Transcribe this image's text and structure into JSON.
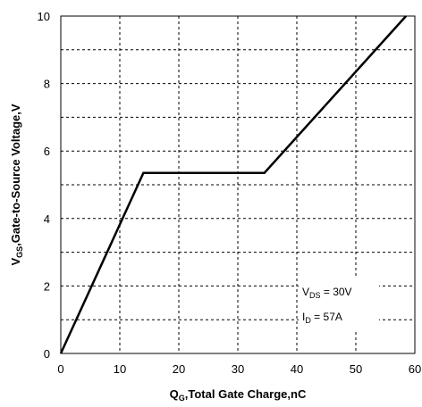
{
  "chart_data": {
    "type": "line",
    "title": "",
    "xlabel": "QG,Total Gate Charge,nC",
    "xlabel_main": "Q",
    "xlabel_sub": "G",
    "xlabel_rest": ",Total Gate Charge,nC",
    "ylabel_main": "V",
    "ylabel_sub": "GS",
    "ylabel_rest": ",Gate-to-Source Voltage,V",
    "xlim": [
      0,
      60
    ],
    "ylim": [
      0,
      10
    ],
    "x_ticks": [
      0,
      10,
      20,
      30,
      40,
      50,
      60
    ],
    "y_ticks": [
      0,
      2,
      4,
      6,
      8,
      10
    ],
    "grid": true,
    "series": [
      {
        "x": [
          0,
          14,
          34.5,
          58.5
        ],
        "y": [
          0,
          5.35,
          5.35,
          10
        ]
      }
    ],
    "annotations": [
      {
        "main": "V",
        "sub": "DS",
        "rest": " = 30V"
      },
      {
        "main": "I",
        "sub": "D",
        "rest": " = 57A"
      }
    ]
  }
}
